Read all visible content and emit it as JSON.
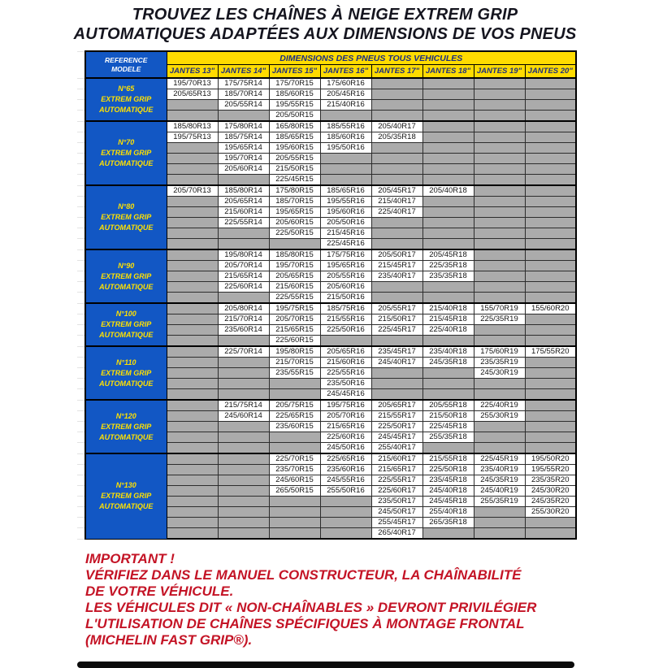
{
  "title": {
    "lines": [
      "TROUVEZ LES CHAÎNES À NEIGE EXTREM GRIP",
      "AUTOMATIQUES ADAPTÉES AUX DIMENSIONS DE VOS PNEUS"
    ]
  },
  "colors": {
    "blue": "#1257c4",
    "yellow": "#ffdb00",
    "header_text": "#1c2f80",
    "model_text": "#ffe100",
    "empty_cell": "#ababab",
    "red": "#c41426",
    "title_text": "#15151f"
  },
  "table": {
    "corner_label": [
      "REFERENCE",
      "MODELE"
    ],
    "band_header": "DIMENSIONS DES PNEUS TOUS VEHICULES",
    "columns": [
      "JANTES 13\"",
      "JANTES 14\"",
      "JANTES 15\"",
      "JANTES 16\"",
      "JANTES 17\"",
      "JANTES 18\"",
      "JANTES 19\"",
      "JANTES 20\""
    ],
    "groups": [
      {
        "model": "N°65",
        "line2": "EXTREM GRIP",
        "line3": "AUTOMATIQUE",
        "rows": [
          [
            "195/70R13",
            "175/75R14",
            "175/70R15",
            "175/60R16",
            "",
            "",
            "",
            ""
          ],
          [
            "205/65R13",
            "185/70R14",
            "185/60R15",
            "205/45R16",
            "",
            "",
            "",
            ""
          ],
          [
            "",
            "205/55R14",
            "195/55R15",
            "215/40R16",
            "",
            "",
            "",
            ""
          ],
          [
            "",
            "",
            "205/50R15",
            "",
            "",
            "",
            "",
            ""
          ]
        ]
      },
      {
        "model": "N°70",
        "line2": "EXTREM GRIP",
        "line3": "AUTOMATIQUE",
        "rows": [
          [
            "185/80R13",
            "175/80R14",
            "165/80R15",
            "185/55R16",
            "205/40R17",
            "",
            "",
            ""
          ],
          [
            "195/75R13",
            "185/75R14",
            "185/65R15",
            "185/60R16",
            "205/35R18",
            "",
            "",
            ""
          ],
          [
            "",
            "195/65R14",
            "195/60R15",
            "195/50R16",
            "",
            "",
            "",
            ""
          ],
          [
            "",
            "195/70R14",
            "205/55R15",
            "",
            "",
            "",
            "",
            ""
          ],
          [
            "",
            "205/60R14",
            "215/50R15",
            "",
            "",
            "",
            "",
            ""
          ],
          [
            "",
            "",
            "225/45R15",
            "",
            "",
            "",
            "",
            ""
          ]
        ]
      },
      {
        "model": "N°80",
        "line2": "EXTREM GRIP",
        "line3": "AUTOMATIQUE",
        "rows": [
          [
            "205/70R13",
            "185/80R14",
            "175/80R15",
            "185/65R16",
            "205/45R17",
            "205/40R18",
            "",
            ""
          ],
          [
            "",
            "205/65R14",
            "185/70R15",
            "195/55R16",
            "215/40R17",
            "",
            "",
            ""
          ],
          [
            "",
            "215/60R14",
            "195/65R15",
            "195/60R16",
            "225/40R17",
            "",
            "",
            ""
          ],
          [
            "",
            "225/55R14",
            "205/60R15",
            "205/50R16",
            "",
            "",
            "",
            ""
          ],
          [
            "",
            "",
            "225/50R15",
            "215/45R16",
            "",
            "",
            "",
            ""
          ],
          [
            "",
            "",
            "",
            "225/45R16",
            "",
            "",
            "",
            ""
          ]
        ]
      },
      {
        "model": "N°90",
        "line2": "EXTREM GRIP",
        "line3": "AUTOMATIQUE",
        "rows": [
          [
            "",
            "195/80R14",
            "185/80R15",
            "175/75R16",
            "205/50R17",
            "205/45R18",
            "",
            ""
          ],
          [
            "",
            "205/70R14",
            "195/70R15",
            "195/65R16",
            "215/45R17",
            "225/35R18",
            "",
            ""
          ],
          [
            "",
            "215/65R14",
            "205/65R15",
            "205/55R16",
            "235/40R17",
            "235/35R18",
            "",
            ""
          ],
          [
            "",
            "225/60R14",
            "215/60R15",
            "205/60R16",
            "",
            "",
            "",
            ""
          ],
          [
            "",
            "",
            "225/55R15",
            "215/50R16",
            "",
            "",
            "",
            ""
          ]
        ]
      },
      {
        "model": "N°100",
        "line2": "EXTREM GRIP",
        "line3": "AUTOMATIQUE",
        "rows": [
          [
            "",
            "205/80R14",
            "195/75R15",
            "185/75R16",
            "205/55R17",
            "215/40R18",
            "155/70R19",
            "155/60R20"
          ],
          [
            "",
            "215/70R14",
            "205/70R15",
            "215/55R16",
            "215/50R17",
            "215/45R18",
            "225/35R19",
            ""
          ],
          [
            "",
            "235/60R14",
            "215/65R15",
            "225/50R16",
            "225/45R17",
            "225/40R18",
            "",
            ""
          ],
          [
            "",
            "",
            "225/60R15",
            "",
            "",
            "",
            "",
            ""
          ]
        ]
      },
      {
        "model": "N°110",
        "line2": "EXTREM GRIP",
        "line3": "AUTOMATIQUE",
        "rows": [
          [
            "",
            "225/70R14",
            "195/80R15",
            "205/65R16",
            "235/45R17",
            "235/40R18",
            "175/60R19",
            "175/55R20"
          ],
          [
            "",
            "",
            "215/70R15",
            "215/60R16",
            "245/40R17",
            "245/35R18",
            "235/35R19",
            ""
          ],
          [
            "",
            "",
            "235/55R15",
            "225/55R16",
            "",
            "",
            "245/30R19",
            ""
          ],
          [
            "",
            "",
            "",
            "235/50R16",
            "",
            "",
            "",
            ""
          ],
          [
            "",
            "",
            "",
            "245/45R16",
            "",
            "",
            "",
            ""
          ]
        ]
      },
      {
        "model": "N°120",
        "line2": "EXTREM GRIP",
        "line3": "AUTOMATIQUE",
        "rows": [
          [
            "",
            "215/75R14",
            "205/75R15",
            "195/75R16",
            "205/65R17",
            "205/55R18",
            "225/40R19",
            ""
          ],
          [
            "",
            "245/60R14",
            "225/65R15",
            "205/70R16",
            "215/55R17",
            "215/50R18",
            "255/30R19",
            ""
          ],
          [
            "",
            "",
            "235/60R15",
            "215/65R16",
            "225/50R17",
            "225/45R18",
            "",
            ""
          ],
          [
            "",
            "",
            "",
            "225/60R16",
            "245/45R17",
            "255/35R18",
            "",
            ""
          ],
          [
            "",
            "",
            "",
            "245/50R16",
            "255/40R17",
            "",
            "",
            ""
          ]
        ]
      },
      {
        "model": "N°130",
        "line2": "EXTREM GRIP",
        "line3": "AUTOMATIQUE",
        "rows": [
          [
            "",
            "",
            "225/70R15",
            "225/65R16",
            "215/60R17",
            "215/55R18",
            "225/45R19",
            "195/50R20"
          ],
          [
            "",
            "",
            "235/70R15",
            "235/60R16",
            "215/65R17",
            "225/50R18",
            "235/40R19",
            "195/55R20"
          ],
          [
            "",
            "",
            "245/60R15",
            "245/55R16",
            "225/55R17",
            "235/45R18",
            "245/35R19",
            "235/35R20"
          ],
          [
            "",
            "",
            "265/50R15",
            "255/50R16",
            "225/60R17",
            "245/40R18",
            "245/40R19",
            "245/30R20"
          ],
          [
            "",
            "",
            "",
            "",
            "235/50R17",
            "245/45R18",
            "255/35R19",
            "245/35R20"
          ],
          [
            "",
            "",
            "",
            "",
            "245/50R17",
            "255/40R18",
            "",
            "255/30R20"
          ],
          [
            "",
            "",
            "",
            "",
            "255/45R17",
            "265/35R18",
            "",
            ""
          ],
          [
            "",
            "",
            "",
            "",
            "265/40R17",
            "",
            "",
            ""
          ]
        ]
      }
    ]
  },
  "footer": {
    "heading": "IMPORTANT !",
    "lines": [
      "VÉRIFIEZ DANS LE MANUEL CONSTRUCTEUR, LA CHAÎNABILITÉ",
      "DE VOTRE VÉHICULE.",
      "LES VÉHICULES DIT « NON-CHAÎNABLES » DEVRONT PRIVILÉGIER",
      "L'UTILISATION DE CHAÎNES SPÉCIFIQUES À MONTAGE FRONTAL",
      "(MICHELIN FAST GRIP®)."
    ]
  }
}
